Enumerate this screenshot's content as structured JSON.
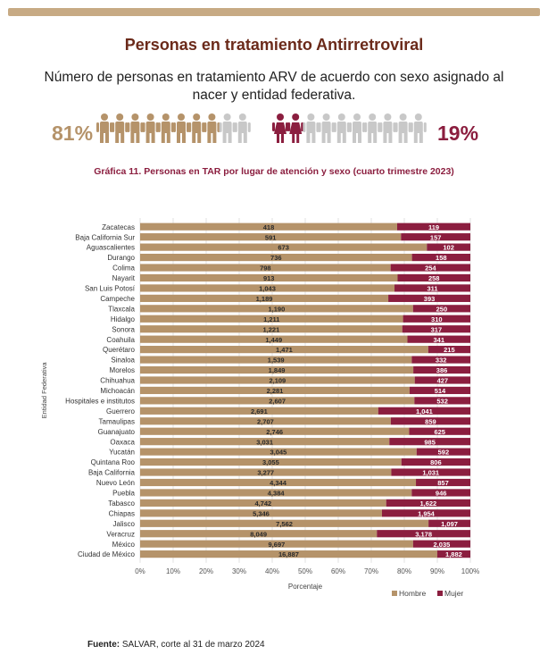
{
  "header": {
    "title": "Personas en tratamiento Antirretroviral",
    "subtitle": "Número de personas en tratamiento ARV de acuerdo con sexo asignado al nacer y entidad federativa.",
    "male_percent": "81%",
    "female_percent": "19%",
    "icon_male": "male-figure-icon",
    "icon_female": "female-figure-icon"
  },
  "colors": {
    "hombre": "#b5936a",
    "mujer": "#8b1e3f",
    "neutral_icon": "#c8c8c8",
    "title": "#6b2a1a",
    "chart_title": "#8b1e3f",
    "top_bar": "#c7aa84"
  },
  "chart_data": {
    "type": "bar",
    "orientation": "horizontal",
    "stacked": "100%",
    "title": "Gráfica 11. Personas en TAR por lugar de atención y sexo (cuarto trimestre 2023)",
    "xlabel": "Porcentaje",
    "ylabel": "Entidad Federativa",
    "xlim": [
      0,
      100
    ],
    "x_ticks": [
      "0%",
      "10%",
      "20%",
      "30%",
      "40%",
      "50%",
      "60%",
      "70%",
      "80%",
      "90%",
      "100%"
    ],
    "legend_position": "bottom-right",
    "categories": [
      "Zacatecas",
      "Baja California Sur",
      "Aguascalientes",
      "Durango",
      "Colima",
      "Nayarit",
      "San Luis Potosí",
      "Campeche",
      "Tlaxcala",
      "Hidalgo",
      "Sonora",
      "Coahuila",
      "Querétaro",
      "Sinaloa",
      "Morelos",
      "Chihuahua",
      "Michoacán",
      "Hospitales e institutos",
      "Guerrero",
      "Tamaulipas",
      "Guanajuato",
      "Oaxaca",
      "Yucatán",
      "Quintana Roo",
      "Baja California",
      "Nuevo León",
      "Puebla",
      "Tabasco",
      "Chiapas",
      "Jalisco",
      "Veracruz",
      "México",
      "Ciudad de México"
    ],
    "series": [
      {
        "name": "Hombre",
        "values": [
          418,
          591,
          673,
          736,
          798,
          913,
          1043,
          1189,
          1190,
          1211,
          1221,
          1449,
          1471,
          1539,
          1849,
          2109,
          2281,
          2607,
          2691,
          2707,
          2746,
          3031,
          3045,
          3055,
          3277,
          4344,
          4384,
          4742,
          5346,
          7562,
          8049,
          9697,
          16887
        ],
        "labels": [
          "418",
          "591",
          "673",
          "736",
          "798",
          "913",
          "1,043",
          "1,189",
          "1,190",
          "1,211",
          "1,221",
          "1,449",
          "1,471",
          "1,539",
          "1,849",
          "2,109",
          "2,281",
          "2,607",
          "2,691",
          "2,707",
          "2,746",
          "3,031",
          "3,045",
          "3,055",
          "3,277",
          "4,344",
          "4,384",
          "4,742",
          "5,346",
          "7,562",
          "8,049",
          "9,697",
          "16,887"
        ]
      },
      {
        "name": "Mujer",
        "values": [
          119,
          157,
          102,
          158,
          254,
          258,
          311,
          393,
          250,
          310,
          317,
          341,
          215,
          332,
          386,
          427,
          514,
          532,
          1041,
          859,
          625,
          985,
          592,
          806,
          1031,
          857,
          946,
          1622,
          1954,
          1097,
          3178,
          2035,
          1882
        ],
        "labels": [
          "119",
          "157",
          "102",
          "158",
          "254",
          "258",
          "311",
          "393",
          "250",
          "310",
          "317",
          "341",
          "215",
          "332",
          "386",
          "427",
          "514",
          "532",
          "1,041",
          "859",
          "625",
          "985",
          "592",
          "806",
          "1,031",
          "857",
          "946",
          "1,622",
          "1,954",
          "1,097",
          "3,178",
          "2,035",
          "1,882"
        ]
      }
    ]
  },
  "footer": {
    "source_label": "Fuente:",
    "source_text": " SALVAR, corte al 31 de marzo 2024"
  }
}
